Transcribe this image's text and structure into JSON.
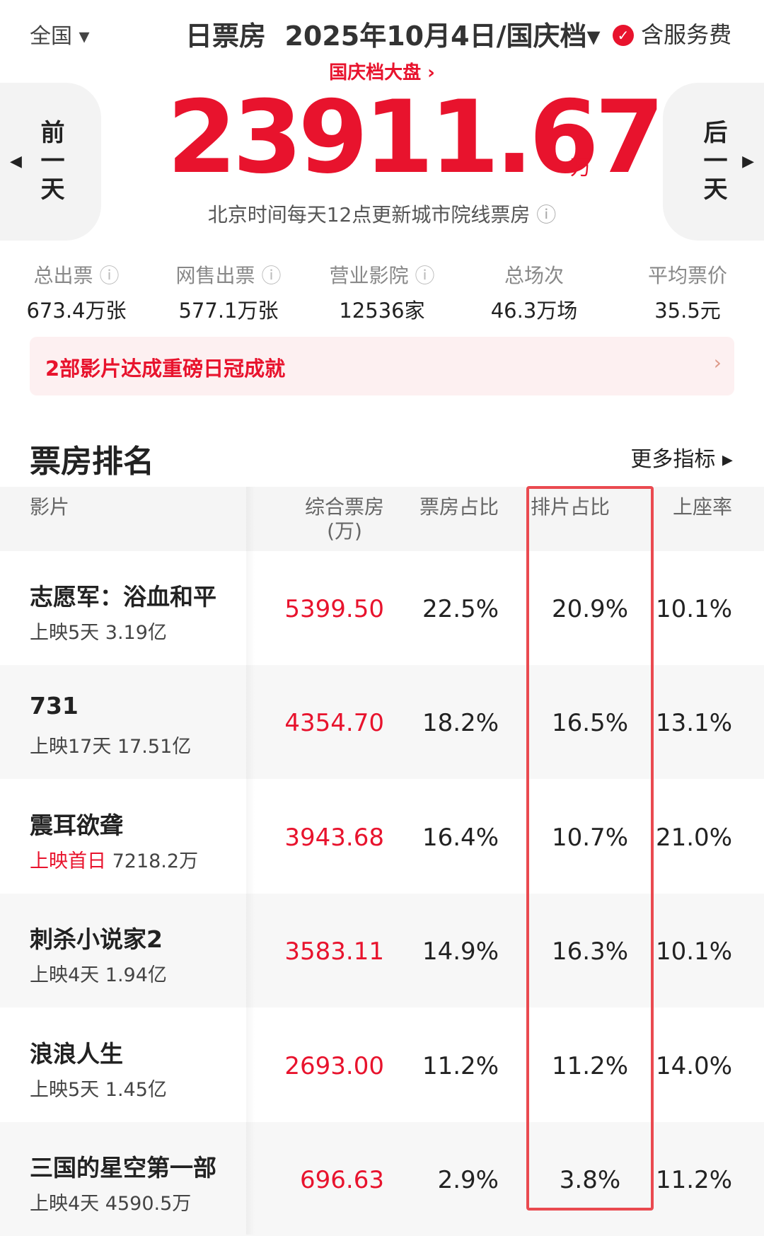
{
  "header": {
    "region": "全国",
    "title": "日票房",
    "date": "2025年10月4日/国庆档",
    "service": "含服务费"
  },
  "banner": {
    "link": "国庆档大盘",
    "total": "23911.67",
    "unit": "万",
    "note": "北京时间每天12点更新城市院线票房",
    "prev": "前一天",
    "next": "后一天"
  },
  "stats": [
    {
      "label": "总出票",
      "value": "673.4万张"
    },
    {
      "label": "网售出票",
      "value": "577.1万张"
    },
    {
      "label": "营业影院",
      "value": "12536家"
    },
    {
      "label": "总场次",
      "value": "46.3万场"
    },
    {
      "label": "平均票价",
      "value": "35.5元"
    }
  ],
  "alert": "2部影片达成重磅日冠成就",
  "ranking": {
    "title": "票房排名",
    "more": "更多指标",
    "columns": [
      "影片",
      "综合票房",
      "票房占比",
      "排片占比",
      "上座率"
    ],
    "column_unit": "(万)",
    "rows": [
      {
        "name": "志愿军：浴血和平",
        "release": "上映5天",
        "total": "3.19亿",
        "box": "5399.50",
        "share": "22.5%",
        "screening": "20.9%",
        "occupancy": "10.1%"
      },
      {
        "name": "731",
        "release": "上映17天",
        "total": "17.51亿",
        "box": "4354.70",
        "share": "18.2%",
        "screening": "16.5%",
        "occupancy": "13.1%"
      },
      {
        "name": "震耳欲聋",
        "release": "上映首日",
        "total": "7218.2万",
        "box": "3943.68",
        "share": "16.4%",
        "screening": "10.7%",
        "occupancy": "21.0%"
      },
      {
        "name": "刺杀小说家2",
        "release": "上映4天",
        "total": "1.94亿",
        "box": "3583.11",
        "share": "14.9%",
        "screening": "16.3%",
        "occupancy": "10.1%"
      },
      {
        "name": "浪浪人生",
        "release": "上映5天",
        "total": "1.45亿",
        "box": "2693.00",
        "share": "11.2%",
        "screening": "11.2%",
        "occupancy": "14.0%"
      },
      {
        "name": "三国的星空第一部",
        "release": "上映4天",
        "total": "4590.5万",
        "box": "696.63",
        "share": "2.9%",
        "screening": "3.8%",
        "occupancy": "11.2%"
      }
    ]
  }
}
